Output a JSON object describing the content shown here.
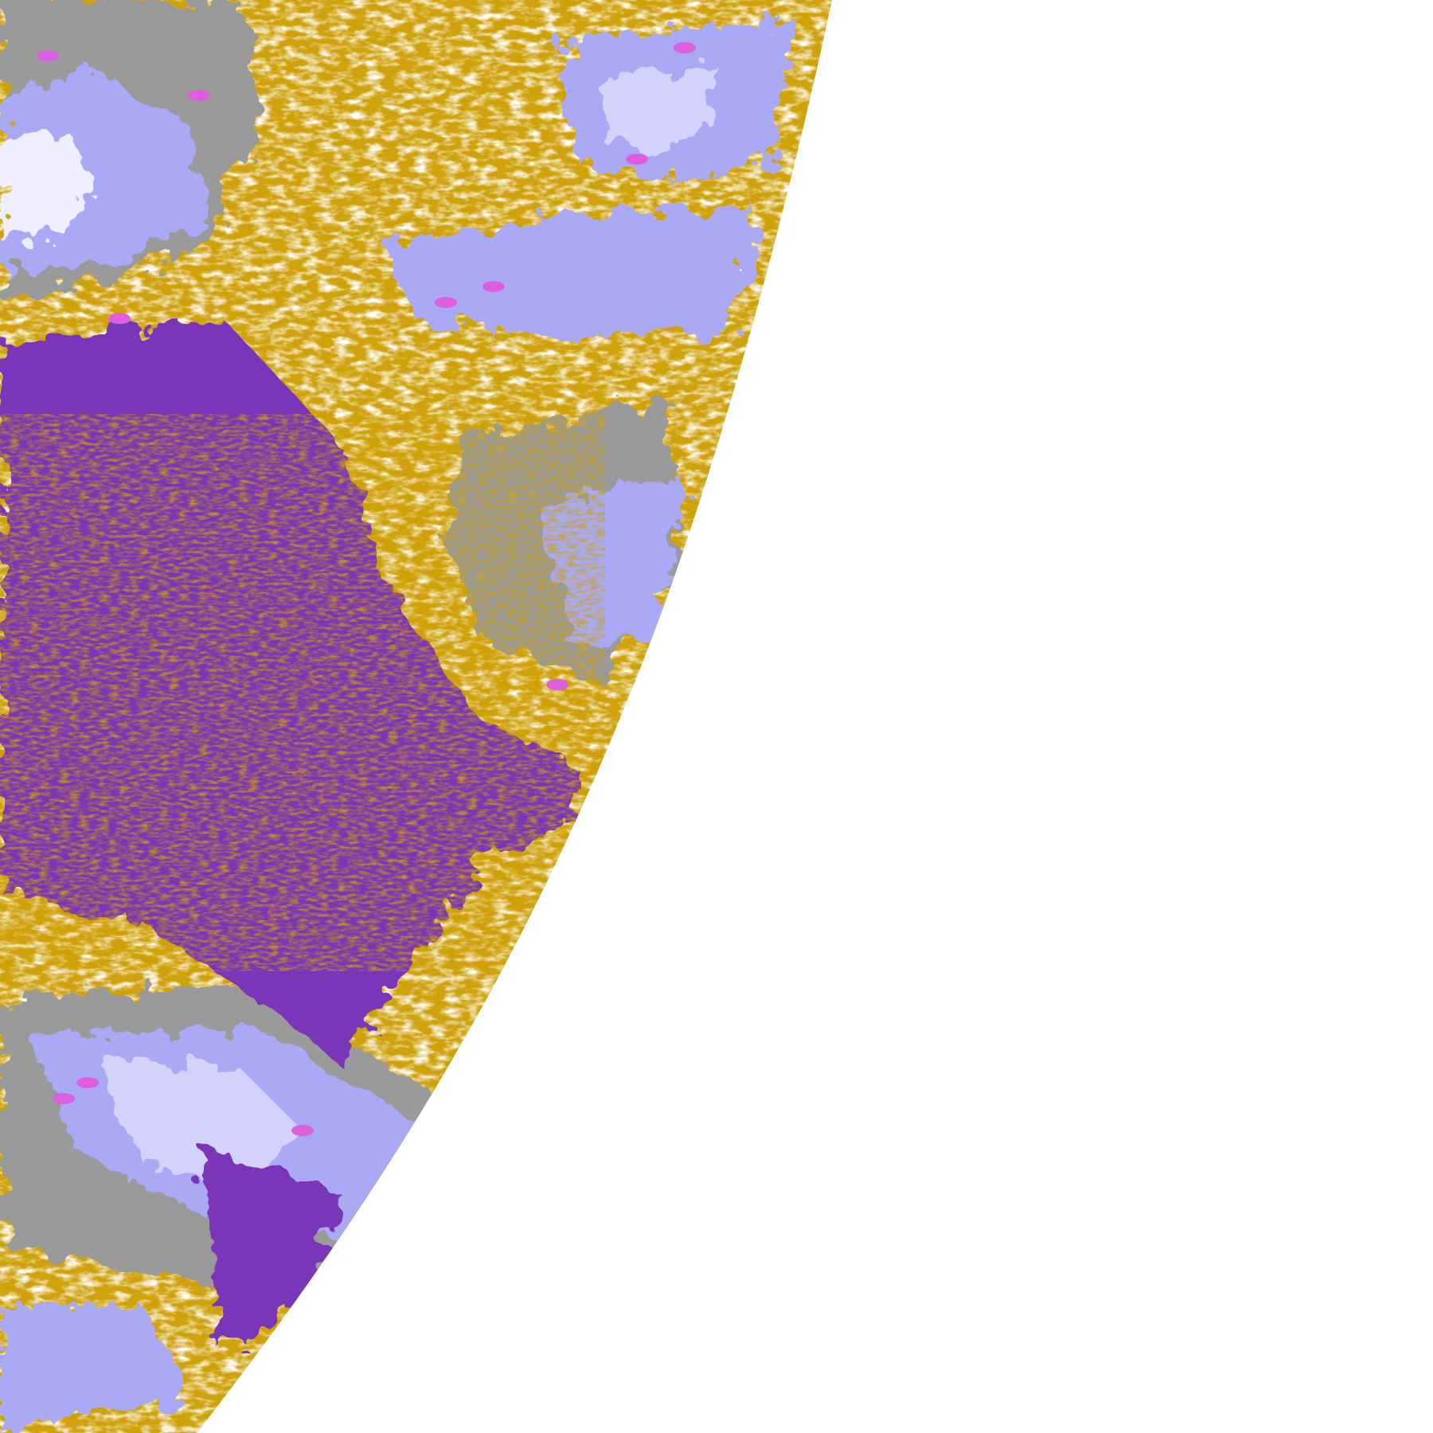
{
  "image": {
    "kind": "false-color satellite cloud classification",
    "background": "#ffffff",
    "palette": {
      "gold": "#cfa10a",
      "purple": "#7a35b8",
      "lavender": "#a9a9f5",
      "pale_lavender": "#d2d2fb",
      "near_white_cloud": "#eeeeff",
      "gray": "#9a9a9a",
      "magenta": "#dd5fe0",
      "clear": "#ffffff"
    }
  }
}
